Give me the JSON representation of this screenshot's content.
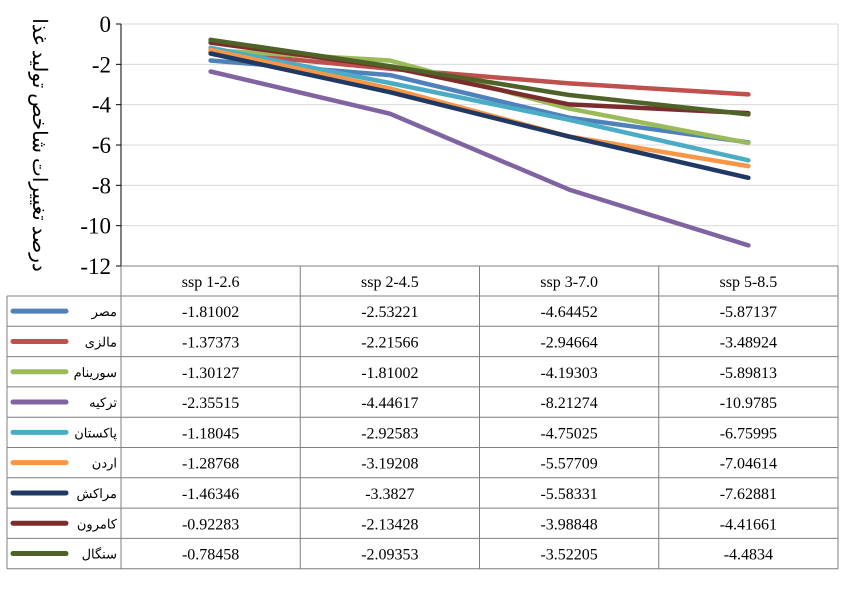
{
  "chart_data": {
    "type": "line",
    "ylabel": "درصد تغییرات شاخص تولید غذا",
    "xlabel": "",
    "ylim": [
      -12,
      0
    ],
    "yticks": [
      0,
      -2,
      -4,
      -6,
      -8,
      -10,
      -12
    ],
    "grid": true,
    "legend": "data-table-left",
    "categories": [
      "ssp 1-2.6",
      "ssp 2-4.5",
      "ssp 3-7.0",
      "ssp 5-8.5"
    ],
    "series": [
      {
        "name": "مصر",
        "color": "#4F81BD",
        "values": [
          -1.81002,
          -2.53221,
          -4.64452,
          -5.87137
        ],
        "labels": [
          "-1.81002",
          "-2.53221",
          "-4.64452",
          "-5.87137"
        ]
      },
      {
        "name": "مالزی",
        "color": "#C0504D",
        "values": [
          -1.37373,
          -2.21566,
          -2.94664,
          -3.48924
        ],
        "labels": [
          "-1.37373",
          "-2.21566",
          "-2.94664",
          "-3.48924"
        ]
      },
      {
        "name": "سورینام",
        "color": "#9BBB59",
        "values": [
          -1.30127,
          -1.81002,
          -4.19303,
          -5.89813
        ],
        "labels": [
          "-1.30127",
          "-1.81002",
          "-4.19303",
          "-5.89813"
        ]
      },
      {
        "name": "ترکیه",
        "color": "#8064A2",
        "values": [
          -2.35515,
          -4.44617,
          -8.21274,
          -10.9785
        ],
        "labels": [
          "-2.35515",
          "-4.44617",
          "-8.21274",
          "-10.9785"
        ]
      },
      {
        "name": "پاکستان",
        "color": "#4BACC6",
        "values": [
          -1.18045,
          -2.92583,
          -4.75025,
          -6.75995
        ],
        "labels": [
          "-1.18045",
          "-2.92583",
          "-4.75025",
          "-6.75995"
        ]
      },
      {
        "name": "اردن",
        "color": "#F79646",
        "values": [
          -1.28768,
          -3.19208,
          -5.57709,
          -7.04614
        ],
        "labels": [
          "-1.28768",
          "-3.19208",
          "-5.57709",
          "-7.04614"
        ]
      },
      {
        "name": "مراکش",
        "color": "#1F3864",
        "values": [
          -1.46346,
          -3.3827,
          -5.58331,
          -7.62881
        ],
        "labels": [
          "-1.46346",
          "-3.3827",
          "-5.58331",
          "-7.62881"
        ]
      },
      {
        "name": "کامرون",
        "color": "#7B2C2C",
        "values": [
          -0.92283,
          -2.13428,
          -3.98848,
          -4.41661
        ],
        "labels": [
          "-0.92283",
          "-2.13428",
          "-3.98848",
          "-4.41661"
        ]
      },
      {
        "name": "سنگال",
        "color": "#4F6228",
        "values": [
          -0.78458,
          -2.09353,
          -3.52205,
          -4.4834
        ],
        "labels": [
          "-0.78458",
          "-2.09353",
          "-3.52205",
          "-4.4834"
        ]
      }
    ]
  }
}
